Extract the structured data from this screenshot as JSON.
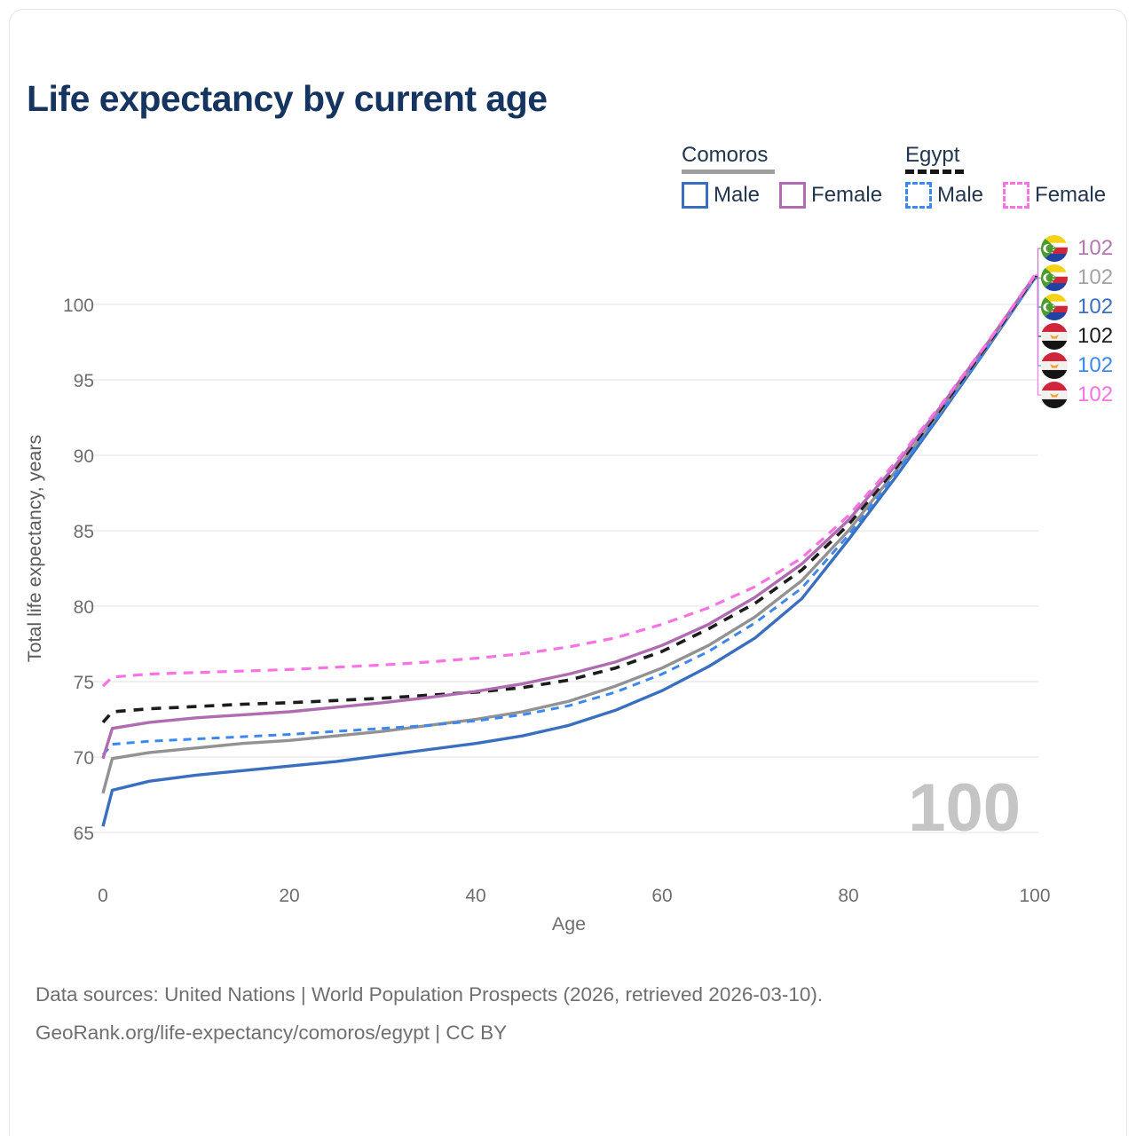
{
  "title": "Life expectancy by current age",
  "legend": {
    "groups": [
      {
        "label": "Comoros",
        "underline_style": "solid",
        "items": [
          {
            "label": "Male",
            "color": "#3a6fbf",
            "dashed": false
          },
          {
            "label": "Female",
            "color": "#b06cb0",
            "dashed": false
          }
        ]
      },
      {
        "label": "Egypt",
        "underline_style": "dashed",
        "items": [
          {
            "label": "Male",
            "color": "#3d87f0",
            "dashed": true
          },
          {
            "label": "Female",
            "color": "#f973e3",
            "dashed": true
          }
        ]
      }
    ]
  },
  "chart_data": {
    "type": "line",
    "xlabel": "Age",
    "ylabel": "Total life expectancy, years",
    "x_ticks": [
      0,
      20,
      40,
      60,
      80,
      100
    ],
    "y_ticks": [
      65,
      70,
      75,
      80,
      85,
      90,
      95,
      100
    ],
    "xlim": [
      0,
      100
    ],
    "ylim": [
      63,
      103
    ],
    "grid": true,
    "age_counter_watermark": "100",
    "x": [
      0,
      1,
      5,
      10,
      15,
      20,
      25,
      30,
      35,
      40,
      45,
      50,
      55,
      60,
      65,
      70,
      75,
      80,
      85,
      90,
      95,
      100
    ],
    "series": [
      {
        "name": "Comoros Male",
        "country": "Comoros",
        "sex": "male",
        "color": "#3a6fbf",
        "dash": null,
        "width": 3.4,
        "values": [
          65.4,
          67.8,
          68.4,
          68.8,
          69.1,
          69.4,
          69.7,
          70.1,
          70.5,
          70.9,
          71.4,
          72.1,
          73.1,
          74.4,
          76.0,
          77.9,
          80.5,
          84.4,
          88.5,
          92.8,
          97.2,
          101.75
        ]
      },
      {
        "name": "Comoros",
        "country": "Comoros",
        "sex": "both",
        "color": "#929292",
        "dash": null,
        "width": 3.4,
        "values": [
          67.6,
          69.9,
          70.3,
          70.6,
          70.9,
          71.1,
          71.4,
          71.7,
          72.1,
          72.5,
          73.0,
          73.7,
          74.7,
          75.9,
          77.4,
          79.3,
          81.7,
          85.0,
          88.9,
          93.0,
          97.3,
          101.8
        ]
      },
      {
        "name": "Egypt Male",
        "country": "Egypt",
        "sex": "male",
        "color": "#3d87f0",
        "dash": "9 7",
        "width": 3.0,
        "values": [
          70.15,
          70.85,
          71.05,
          71.2,
          71.35,
          71.5,
          71.7,
          71.9,
          72.1,
          72.4,
          72.8,
          73.4,
          74.3,
          75.5,
          77.0,
          78.9,
          81.2,
          84.7,
          88.7,
          92.9,
          97.25,
          101.7
        ]
      },
      {
        "name": "Egypt",
        "country": "Egypt",
        "sex": "both",
        "color": "#1c1c1c",
        "dash": "11 9",
        "width": 3.6,
        "values": [
          72.3,
          73.0,
          73.2,
          73.35,
          73.5,
          73.6,
          73.75,
          73.9,
          74.1,
          74.3,
          74.6,
          75.1,
          75.9,
          77.0,
          78.5,
          80.2,
          82.4,
          85.4,
          89.1,
          93.15,
          97.4,
          101.85
        ]
      },
      {
        "name": "Comoros Female",
        "country": "Comoros",
        "sex": "female",
        "color": "#b06cb0",
        "dash": null,
        "width": 3.4,
        "values": [
          69.9,
          71.9,
          72.3,
          72.6,
          72.8,
          73.0,
          73.3,
          73.6,
          73.95,
          74.35,
          74.85,
          75.5,
          76.3,
          77.4,
          78.8,
          80.6,
          82.8,
          85.7,
          89.3,
          93.3,
          97.5,
          101.9
        ]
      },
      {
        "name": "Egypt Female",
        "country": "Egypt",
        "sex": "female",
        "color": "#f973e3",
        "dash": "11 8",
        "width": 3.2,
        "values": [
          74.7,
          75.3,
          75.5,
          75.6,
          75.7,
          75.8,
          75.95,
          76.1,
          76.3,
          76.55,
          76.85,
          77.3,
          77.9,
          78.8,
          79.9,
          81.3,
          83.2,
          86.0,
          89.5,
          93.4,
          97.55,
          101.95
        ]
      }
    ]
  },
  "end_labels": [
    {
      "value": "102",
      "color": "#b277b2",
      "flag_icon": "comoros-flag-icon",
      "series": "Comoros Female"
    },
    {
      "value": "102",
      "color": "#a3a3a3",
      "flag_icon": "comoros-flag-icon",
      "series": "Comoros"
    },
    {
      "value": "102",
      "color": "#3a6fbf",
      "flag_icon": "comoros-flag-icon",
      "series": "Comoros Male"
    },
    {
      "value": "102",
      "color": "#1c1c1c",
      "flag_icon": "egypt-flag-icon",
      "series": "Egypt"
    },
    {
      "value": "102",
      "color": "#3d87f0",
      "flag_icon": "egypt-flag-icon",
      "series": "Egypt Male"
    },
    {
      "value": "102",
      "color": "#f973e3",
      "flag_icon": "egypt-flag-icon",
      "series": "Egypt Female"
    }
  ],
  "footer": {
    "line1": "Data sources: United Nations | World Population Prospects (2026, retrieved 2026-03-10).",
    "line2": "GeoRank.org/life-expectancy/comoros/egypt | CC BY"
  }
}
